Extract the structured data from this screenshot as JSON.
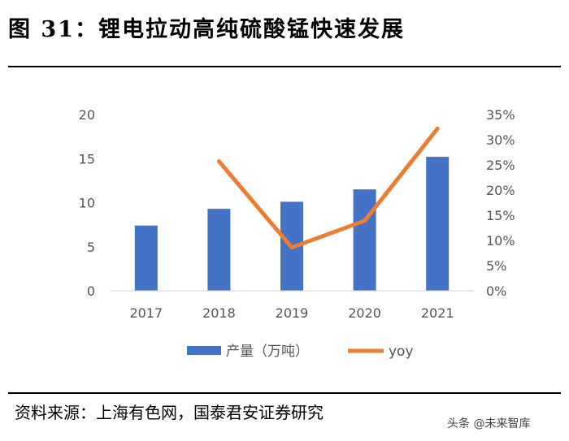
{
  "header": {
    "title": "图 31：锂电拉动高纯硫酸锰快速发展"
  },
  "footer": {
    "source": "资料来源：上海有色网，国泰君安证券研究",
    "watermark": "头条 @未来智库"
  },
  "chart_data": {
    "type": "bar",
    "categories": [
      "2017",
      "2018",
      "2019",
      "2020",
      "2021"
    ],
    "series": [
      {
        "name": "产量（万吨）",
        "type": "bar",
        "axis": "left",
        "color": "#4472C4",
        "values": [
          7.4,
          9.3,
          10.1,
          11.5,
          15.2
        ]
      },
      {
        "name": "yoy",
        "type": "line",
        "axis": "right",
        "color": "#ED7D31",
        "values": [
          null,
          25.7,
          8.6,
          13.9,
          32.2
        ]
      }
    ],
    "y_left": {
      "min": 0,
      "max": 20,
      "ticks": [
        "0",
        "5",
        "10",
        "15",
        "20"
      ]
    },
    "y_right": {
      "min": 0,
      "max": 35,
      "ticks": [
        "0%",
        "5%",
        "10%",
        "15%",
        "20%",
        "25%",
        "30%",
        "35%"
      ]
    },
    "legend": "bottom",
    "grid": false
  }
}
